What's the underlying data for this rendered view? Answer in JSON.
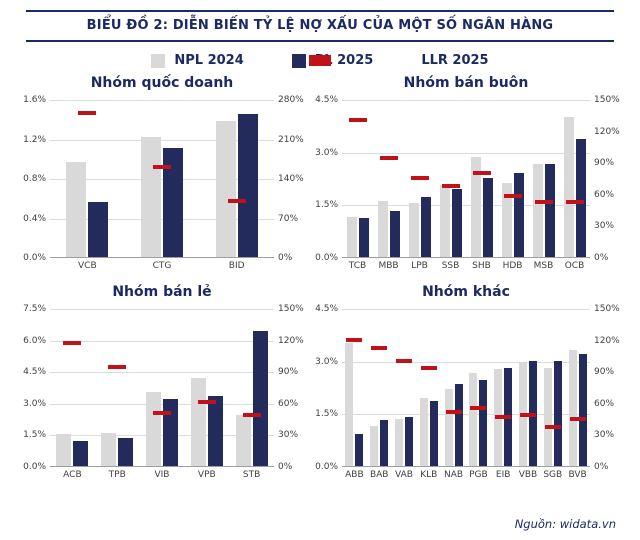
{
  "header": {
    "title": "BIỂU ĐỒ 2: DIỄN BIẾN TỶ LỆ NỢ XẤU CỦA MỘT SỐ NGÂN HÀNG"
  },
  "legend": {
    "position": "top",
    "items": [
      {
        "label": "NPL 2024",
        "color": "#d9d9d9",
        "type": "bar"
      },
      {
        "label": "PL 2025",
        "color": "#222b5c",
        "type": "bar"
      },
      {
        "label": "LLR 2025",
        "color": "#c1121a",
        "type": "dash"
      }
    ]
  },
  "colors": {
    "npl": "#d9d9d9",
    "pl": "#222b5c",
    "llr": "#c1121a",
    "title": "#1b2a63"
  },
  "source": "Nguồn: widata.vn",
  "chart_data": [
    {
      "type": "bar",
      "title": "Nhóm quốc doanh",
      "categories": [
        "VCB",
        "CTG",
        "BID"
      ],
      "series": [
        {
          "name": "NPL 2024",
          "axis": "left",
          "values": [
            0.96,
            1.22,
            1.38
          ]
        },
        {
          "name": "PL 2025",
          "axis": "left",
          "values": [
            0.56,
            1.1,
            1.45
          ]
        },
        {
          "name": "LLR 2025",
          "axis": "right",
          "values": [
            255,
            160,
            100
          ]
        }
      ],
      "left_axis": {
        "min": 0,
        "max": 1.6,
        "tick_labels": [
          "1.6%",
          "1.2%",
          "0.8%",
          "0.4%",
          "0.0%"
        ]
      },
      "right_axis": {
        "min": 0,
        "max": 280,
        "tick_labels": [
          "280%",
          "210%",
          "140%",
          "70%",
          "0%"
        ]
      },
      "grid": true
    },
    {
      "type": "bar",
      "title": "Nhóm bán buôn",
      "categories": [
        "TCB",
        "MBB",
        "LPB",
        "SSB",
        "SHB",
        "HDB",
        "MSB",
        "OCB"
      ],
      "series": [
        {
          "name": "NPL 2024",
          "axis": "left",
          "values": [
            1.15,
            1.6,
            1.55,
            2.05,
            2.85,
            2.1,
            2.65,
            4.0
          ]
        },
        {
          "name": "PL 2025",
          "axis": "left",
          "values": [
            1.1,
            1.3,
            1.7,
            1.95,
            2.25,
            2.4,
            2.65,
            3.35
          ]
        },
        {
          "name": "LLR 2025",
          "axis": "right",
          "values": [
            130,
            94,
            75,
            67,
            80,
            58,
            52,
            52
          ]
        }
      ],
      "left_axis": {
        "min": 0,
        "max": 4.5,
        "tick_labels": [
          "4.5%",
          "3.0%",
          "1.5%",
          "0.0%"
        ]
      },
      "right_axis": {
        "min": 0,
        "max": 150,
        "tick_labels": [
          "150%",
          "120%",
          "90%",
          "60%",
          "30%",
          "0%"
        ]
      },
      "grid": true
    },
    {
      "type": "bar",
      "title": "Nhóm bán lẻ",
      "categories": [
        "ACB",
        "TPB",
        "VIB",
        "VPB",
        "STB"
      ],
      "series": [
        {
          "name": "NPL 2024",
          "axis": "left",
          "values": [
            1.5,
            1.55,
            3.5,
            4.2,
            2.4
          ]
        },
        {
          "name": "PL 2025",
          "axis": "left",
          "values": [
            1.2,
            1.35,
            3.2,
            3.3,
            6.4
          ]
        },
        {
          "name": "LLR 2025",
          "axis": "right",
          "values": [
            117,
            94,
            50,
            61,
            48
          ]
        }
      ],
      "left_axis": {
        "min": 0,
        "max": 7.5,
        "tick_labels": [
          "7.5%",
          "6.0%",
          "4.5%",
          "3.0%",
          "1.5%",
          "0.0%"
        ]
      },
      "right_axis": {
        "min": 0,
        "max": 150,
        "tick_labels": [
          "150%",
          "120%",
          "90%",
          "60%",
          "30%",
          "0%"
        ]
      },
      "grid": true
    },
    {
      "type": "bar",
      "title": "Nhóm khác",
      "categories": [
        "ABB",
        "BAB",
        "VAB",
        "KLB",
        "NAB",
        "PGB",
        "EIB",
        "VBB",
        "SGB",
        "BVB"
      ],
      "series": [
        {
          "name": "NPL 2024",
          "axis": "left",
          "values": [
            3.5,
            1.15,
            1.35,
            1.95,
            2.2,
            2.65,
            2.75,
            2.95,
            2.8,
            3.3
          ]
        },
        {
          "name": "PL 2025",
          "axis": "left",
          "values": [
            0.9,
            1.3,
            1.4,
            1.85,
            2.35,
            2.45,
            2.8,
            3.0,
            3.0,
            3.2
          ]
        },
        {
          "name": "LLR 2025",
          "axis": "right",
          "values": [
            120,
            112,
            100,
            93,
            51,
            55,
            47,
            48,
            37,
            45
          ]
        }
      ],
      "left_axis": {
        "min": 0,
        "max": 4.5,
        "tick_labels": [
          "4.5%",
          "3.0%",
          "1.5%",
          "0.0%"
        ]
      },
      "right_axis": {
        "min": 0,
        "max": 150,
        "tick_labels": [
          "150%",
          "120%",
          "90%",
          "60%",
          "30%",
          "0%"
        ]
      },
      "grid": true
    }
  ]
}
